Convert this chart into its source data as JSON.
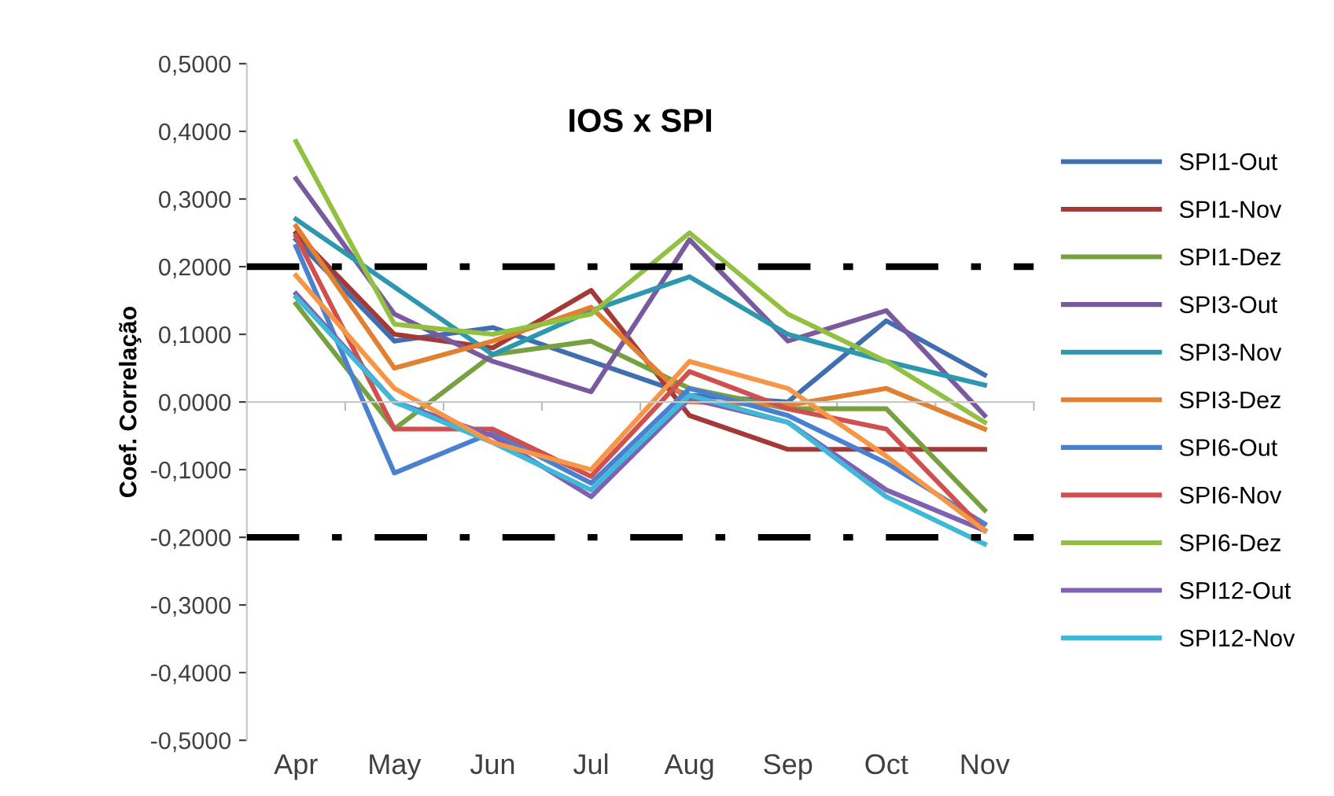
{
  "chart_data": {
    "type": "line",
    "title": "IOS x SPI",
    "ylabel": "Coef. Correlação",
    "categories": [
      "Apr",
      "May",
      "Jun",
      "Jul",
      "Aug",
      "Sep",
      "Oct",
      "Nov"
    ],
    "series": [
      {
        "name": "SPI1-Out",
        "color": "#3f6fb0",
        "values": [
          0.24,
          0.09,
          0.11,
          0.06,
          0.01,
          0.0,
          0.12,
          0.04
        ]
      },
      {
        "name": "SPI1-Nov",
        "color": "#a33a38",
        "values": [
          0.25,
          0.1,
          0.08,
          0.165,
          -0.02,
          -0.07,
          -0.07,
          -0.07
        ]
      },
      {
        "name": "SPI1-Dez",
        "color": "#77a040",
        "values": [
          0.145,
          -0.04,
          0.07,
          0.09,
          0.02,
          -0.01,
          -0.01,
          -0.16
        ]
      },
      {
        "name": "SPI3-Out",
        "color": "#7a5a9e",
        "values": [
          0.33,
          0.13,
          0.06,
          0.015,
          0.24,
          0.09,
          0.135,
          -0.02
        ]
      },
      {
        "name": "SPI3-Nov",
        "color": "#2e97b0",
        "values": [
          0.27,
          0.17,
          0.07,
          0.135,
          0.185,
          0.1,
          0.06,
          0.025
        ]
      },
      {
        "name": "SPI3-Dez",
        "color": "#e08030",
        "values": [
          0.26,
          0.05,
          0.09,
          0.14,
          0.0,
          -0.005,
          0.02,
          -0.04
        ]
      },
      {
        "name": "SPI6-Out",
        "color": "#4a80d0",
        "values": [
          0.23,
          -0.105,
          -0.045,
          -0.12,
          0.02,
          -0.02,
          -0.09,
          -0.18
        ]
      },
      {
        "name": "SPI6-Nov",
        "color": "#d05050",
        "values": [
          0.245,
          -0.04,
          -0.04,
          -0.11,
          0.045,
          -0.01,
          -0.04,
          -0.19
        ]
      },
      {
        "name": "SPI6-Dez",
        "color": "#92c040",
        "values": [
          0.385,
          0.115,
          0.1,
          0.13,
          0.25,
          0.13,
          0.06,
          -0.03
        ]
      },
      {
        "name": "SPI12-Out",
        "color": "#8060b0",
        "values": [
          0.16,
          0.0,
          -0.05,
          -0.14,
          0.005,
          -0.03,
          -0.13,
          -0.19
        ]
      },
      {
        "name": "SPI12-Nov",
        "color": "#40b8d8",
        "values": [
          0.155,
          0.0,
          -0.06,
          -0.13,
          0.01,
          -0.03,
          -0.14,
          -0.21
        ]
      },
      {
        "color": "#f79646",
        "values": [
          0.187,
          0.02,
          -0.06,
          -0.1,
          0.06,
          0.02,
          -0.08,
          -0.19
        ]
      }
    ],
    "ylim": [
      -0.5,
      0.5
    ],
    "yticks": [
      {
        "value": -0.5,
        "label": "-0,5000"
      },
      {
        "value": -0.4,
        "label": "-0,4000"
      },
      {
        "value": -0.3,
        "label": "-0,3000"
      },
      {
        "value": -0.2,
        "label": "-0,2000"
      },
      {
        "value": -0.1,
        "label": "-0,1000"
      },
      {
        "value": 0,
        "label": "0,0000"
      },
      {
        "value": 0.1,
        "label": "0,1000"
      },
      {
        "value": 0.2,
        "label": "0,2000"
      },
      {
        "value": 0.3,
        "label": "0,3000"
      },
      {
        "value": 0.4,
        "label": "0,4000"
      },
      {
        "value": 0.5,
        "label": "0,5000"
      }
    ],
    "ref_lines": [
      {
        "axis": "y",
        "value": 0.2,
        "color": "#000000",
        "line_style": "dashdot"
      },
      {
        "axis": "y",
        "value": -0.2,
        "color": "#000000",
        "line_style": "dashdot"
      }
    ],
    "legend": "right",
    "grid": false,
    "marker": "none",
    "line_style": "solid"
  }
}
